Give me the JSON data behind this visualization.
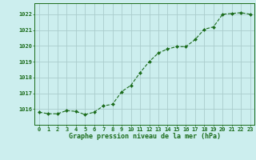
{
  "x": [
    0,
    1,
    2,
    3,
    4,
    5,
    6,
    7,
    8,
    9,
    10,
    11,
    12,
    13,
    14,
    15,
    16,
    17,
    18,
    19,
    20,
    21,
    22,
    23
  ],
  "y": [
    1015.8,
    1015.7,
    1015.7,
    1015.9,
    1015.85,
    1015.65,
    1015.8,
    1016.2,
    1016.3,
    1017.1,
    1017.5,
    1018.3,
    1019.0,
    1019.55,
    1019.8,
    1019.95,
    1019.95,
    1020.4,
    1021.05,
    1021.2,
    1022.0,
    1022.05,
    1022.1,
    1022.0
  ],
  "line_color": "#1a6b1a",
  "marker_color": "#1a6b1a",
  "bg_color": "#cceeee",
  "grid_color": "#aacccc",
  "title": "Graphe pression niveau de la mer (hPa)",
  "title_color": "#1a6b1a",
  "tick_color": "#1a6b1a",
  "ylim": [
    1015.0,
    1022.7
  ],
  "yticks": [
    1016,
    1017,
    1018,
    1019,
    1020,
    1021,
    1022
  ],
  "xlim": [
    -0.5,
    23.5
  ],
  "xticks": [
    0,
    1,
    2,
    3,
    4,
    5,
    6,
    7,
    8,
    9,
    10,
    11,
    12,
    13,
    14,
    15,
    16,
    17,
    18,
    19,
    20,
    21,
    22,
    23
  ]
}
